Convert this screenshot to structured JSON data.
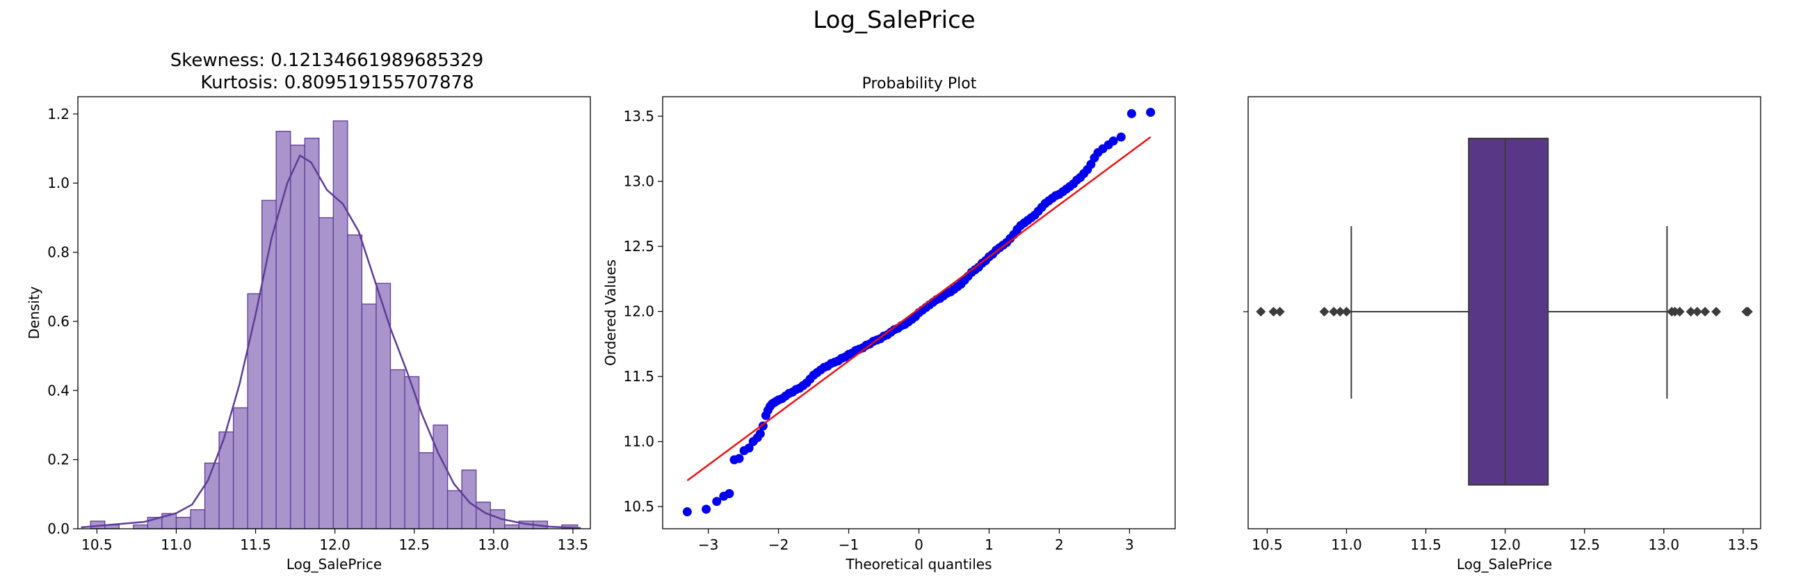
{
  "figure": {
    "suptitle": "Log_SalePrice"
  },
  "chart_data": [
    {
      "type": "histogram",
      "title_line1": "Skewness: 0.12134661989685329",
      "title_line2": "Kurtosis: 0.809519155707878",
      "xlabel": "Log_SalePrice",
      "ylabel": "Density",
      "xlim": [
        10.38,
        13.61
      ],
      "ylim": [
        0,
        1.25
      ],
      "xticks": [
        10.5,
        11.0,
        11.5,
        12.0,
        12.5,
        13.0,
        13.5
      ],
      "yticks": [
        0.0,
        0.2,
        0.4,
        0.6,
        0.8,
        1.0,
        1.2
      ],
      "bins": [
        [
          10.46,
          10.55,
          0.022
        ],
        [
          10.55,
          10.64,
          0.011
        ],
        [
          10.64,
          10.73,
          0.0
        ],
        [
          10.73,
          10.82,
          0.011
        ],
        [
          10.82,
          10.91,
          0.033
        ],
        [
          10.91,
          11.0,
          0.044
        ],
        [
          11.0,
          11.09,
          0.033
        ],
        [
          11.09,
          11.18,
          0.055
        ],
        [
          11.18,
          11.27,
          0.19
        ],
        [
          11.27,
          11.36,
          0.28
        ],
        [
          11.36,
          11.45,
          0.35
        ],
        [
          11.45,
          11.54,
          0.68
        ],
        [
          11.54,
          11.63,
          0.95
        ],
        [
          11.63,
          11.72,
          1.15
        ],
        [
          11.72,
          11.81,
          1.11
        ],
        [
          11.81,
          11.9,
          1.13
        ],
        [
          11.9,
          11.99,
          0.9
        ],
        [
          11.99,
          12.08,
          1.18
        ],
        [
          12.08,
          12.17,
          0.85
        ],
        [
          12.17,
          12.26,
          0.65
        ],
        [
          12.26,
          12.35,
          0.71
        ],
        [
          12.35,
          12.44,
          0.46
        ],
        [
          12.44,
          12.53,
          0.44
        ],
        [
          12.53,
          12.62,
          0.22
        ],
        [
          12.62,
          12.71,
          0.3
        ],
        [
          12.71,
          12.8,
          0.11
        ],
        [
          12.8,
          12.89,
          0.17
        ],
        [
          12.89,
          12.98,
          0.077
        ],
        [
          12.98,
          13.07,
          0.055
        ],
        [
          13.07,
          13.16,
          0.011
        ],
        [
          13.16,
          13.25,
          0.022
        ],
        [
          13.25,
          13.34,
          0.022
        ],
        [
          13.34,
          13.43,
          0.0
        ],
        [
          13.43,
          13.53,
          0.011
        ]
      ],
      "kde_points": [
        [
          10.4,
          0.004
        ],
        [
          10.6,
          0.012
        ],
        [
          10.8,
          0.02
        ],
        [
          11.0,
          0.045
        ],
        [
          11.1,
          0.07
        ],
        [
          11.2,
          0.14
        ],
        [
          11.3,
          0.26
        ],
        [
          11.4,
          0.42
        ],
        [
          11.5,
          0.62
        ],
        [
          11.6,
          0.84
        ],
        [
          11.7,
          1.0
        ],
        [
          11.78,
          1.08
        ],
        [
          11.85,
          1.06
        ],
        [
          11.95,
          0.98
        ],
        [
          12.05,
          0.94
        ],
        [
          12.15,
          0.86
        ],
        [
          12.25,
          0.72
        ],
        [
          12.35,
          0.58
        ],
        [
          12.45,
          0.46
        ],
        [
          12.55,
          0.33
        ],
        [
          12.65,
          0.22
        ],
        [
          12.75,
          0.13
        ],
        [
          12.85,
          0.075
        ],
        [
          12.95,
          0.045
        ],
        [
          13.05,
          0.028
        ],
        [
          13.2,
          0.014
        ],
        [
          13.35,
          0.006
        ],
        [
          13.55,
          0.002
        ]
      ],
      "fill_color": "#a994cb",
      "edge_color": "#5e3c99"
    },
    {
      "type": "scatter",
      "title": "Probability Plot",
      "xlabel": "Theoretical quantiles",
      "ylabel": "Ordered Values",
      "xlim": [
        -3.65,
        3.65
      ],
      "ylim": [
        10.33,
        13.65
      ],
      "xticks": [
        -3,
        -2,
        -1,
        0,
        1,
        2,
        3
      ],
      "yticks": [
        10.5,
        11.0,
        11.5,
        12.0,
        12.5,
        13.0,
        13.5
      ],
      "points": [
        [
          -3.3,
          10.46
        ],
        [
          -3.03,
          10.48
        ],
        [
          -2.88,
          10.54
        ],
        [
          -2.78,
          10.58
        ],
        [
          -2.7,
          10.6
        ],
        [
          -2.63,
          10.86
        ],
        [
          -2.56,
          10.87
        ],
        [
          -2.49,
          10.93
        ],
        [
          -2.42,
          10.95
        ],
        [
          -2.36,
          11.0
        ],
        [
          -2.3,
          11.03
        ],
        [
          -2.26,
          11.06
        ],
        [
          -2.22,
          11.12
        ],
        [
          -2.18,
          11.2
        ],
        [
          -2.15,
          11.24
        ],
        [
          -2.12,
          11.27
        ],
        [
          -2.09,
          11.29
        ],
        [
          -2.06,
          11.3
        ],
        [
          -2.03,
          11.31
        ],
        [
          -2.0,
          11.32
        ],
        [
          -1.95,
          11.33
        ],
        [
          -1.9,
          11.35
        ],
        [
          -1.85,
          11.37
        ],
        [
          -1.8,
          11.38
        ],
        [
          -1.75,
          11.4
        ],
        [
          -1.7,
          11.41
        ],
        [
          -1.65,
          11.43
        ],
        [
          -1.6,
          11.45
        ],
        [
          -1.55,
          11.48
        ],
        [
          -1.5,
          11.51
        ],
        [
          -1.45,
          11.53
        ],
        [
          -1.4,
          11.55
        ],
        [
          -1.35,
          11.57
        ],
        [
          -1.3,
          11.58
        ],
        [
          -1.25,
          11.6
        ],
        [
          -1.2,
          11.61
        ],
        [
          -1.15,
          11.62
        ],
        [
          -1.1,
          11.64
        ],
        [
          -1.05,
          11.65
        ],
        [
          -1.0,
          11.67
        ],
        [
          -0.95,
          11.68
        ],
        [
          -0.9,
          11.7
        ],
        [
          -0.85,
          11.71
        ],
        [
          -0.8,
          11.72
        ],
        [
          -0.75,
          11.74
        ],
        [
          -0.7,
          11.75
        ],
        [
          -0.65,
          11.77
        ],
        [
          -0.6,
          11.78
        ],
        [
          -0.55,
          11.79
        ],
        [
          -0.5,
          11.81
        ],
        [
          -0.45,
          11.82
        ],
        [
          -0.4,
          11.84
        ],
        [
          -0.35,
          11.86
        ],
        [
          -0.3,
          11.87
        ],
        [
          -0.25,
          11.89
        ],
        [
          -0.2,
          11.9
        ],
        [
          -0.15,
          11.92
        ],
        [
          -0.1,
          11.94
        ],
        [
          -0.05,
          11.96
        ],
        [
          0.0,
          11.99
        ],
        [
          0.05,
          12.01
        ],
        [
          0.1,
          12.03
        ],
        [
          0.15,
          12.05
        ],
        [
          0.2,
          12.07
        ],
        [
          0.25,
          12.09
        ],
        [
          0.3,
          12.1
        ],
        [
          0.35,
          12.12
        ],
        [
          0.4,
          12.14
        ],
        [
          0.45,
          12.15
        ],
        [
          0.5,
          12.17
        ],
        [
          0.55,
          12.19
        ],
        [
          0.6,
          12.21
        ],
        [
          0.65,
          12.24
        ],
        [
          0.7,
          12.27
        ],
        [
          0.75,
          12.3
        ],
        [
          0.8,
          12.32
        ],
        [
          0.85,
          12.34
        ],
        [
          0.9,
          12.37
        ],
        [
          0.95,
          12.39
        ],
        [
          1.0,
          12.42
        ],
        [
          1.05,
          12.44
        ],
        [
          1.1,
          12.47
        ],
        [
          1.15,
          12.49
        ],
        [
          1.2,
          12.51
        ],
        [
          1.25,
          12.53
        ],
        [
          1.3,
          12.56
        ],
        [
          1.35,
          12.59
        ],
        [
          1.4,
          12.63
        ],
        [
          1.45,
          12.66
        ],
        [
          1.5,
          12.68
        ],
        [
          1.55,
          12.7
        ],
        [
          1.6,
          12.72
        ],
        [
          1.65,
          12.74
        ],
        [
          1.7,
          12.77
        ],
        [
          1.75,
          12.8
        ],
        [
          1.8,
          12.83
        ],
        [
          1.85,
          12.85
        ],
        [
          1.9,
          12.87
        ],
        [
          1.95,
          12.89
        ],
        [
          2.0,
          12.9
        ],
        [
          2.05,
          12.92
        ],
        [
          2.1,
          12.94
        ],
        [
          2.15,
          12.96
        ],
        [
          2.2,
          12.98
        ],
        [
          2.25,
          13.01
        ],
        [
          2.3,
          13.03
        ],
        [
          2.35,
          13.06
        ],
        [
          2.4,
          13.09
        ],
        [
          2.45,
          13.13
        ],
        [
          2.5,
          13.18
        ],
        [
          2.55,
          13.22
        ],
        [
          2.62,
          13.25
        ],
        [
          2.7,
          13.28
        ],
        [
          2.77,
          13.31
        ],
        [
          2.88,
          13.34
        ],
        [
          3.03,
          13.52
        ],
        [
          3.3,
          13.53
        ]
      ],
      "fit_line": [
        [
          -3.3,
          10.7
        ],
        [
          3.3,
          13.34
        ]
      ],
      "point_color": "#0000ee",
      "line_color": "#ee1111"
    },
    {
      "type": "box",
      "xlabel": "Log_SalePrice",
      "xlim": [
        10.38,
        13.61
      ],
      "xticks": [
        10.5,
        11.0,
        11.5,
        12.0,
        12.5,
        13.0,
        13.5
      ],
      "whisker_low": 11.03,
      "q1": 11.77,
      "median": 12.0,
      "q3": 12.27,
      "whisker_high": 13.02,
      "outliers": [
        10.46,
        10.54,
        10.58,
        10.86,
        10.92,
        10.96,
        11.0,
        13.05,
        13.07,
        13.1,
        13.17,
        13.21,
        13.26,
        13.33,
        13.52,
        13.53
      ],
      "box_color": "#583886",
      "line_color": "#3b3b3b"
    }
  ]
}
